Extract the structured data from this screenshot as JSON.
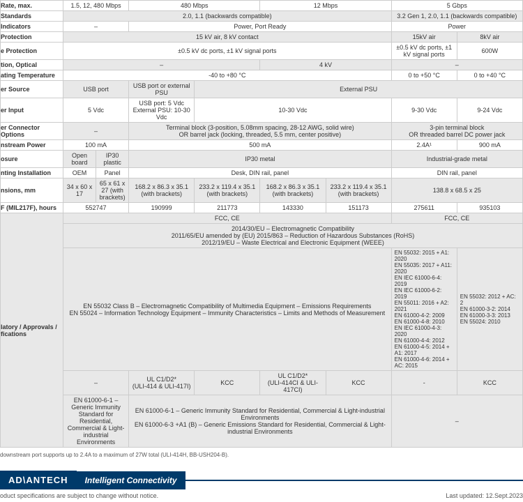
{
  "table": {
    "rows": [
      {
        "label": "Rate, max.",
        "cells": [
          {
            "t": "1.5, 12, 480 Mbps",
            "s": 1
          },
          {
            "t": "480 Mbps",
            "s": 2
          },
          {
            "t": "12 Mbps",
            "s": 2
          },
          {
            "t": "5 Gbps",
            "s": 2
          }
        ]
      },
      {
        "label": "Standards",
        "cells": [
          {
            "t": "2.0, 1.1 (backwards compatible)",
            "s": 5,
            "g": 1
          },
          {
            "t": "3.2 Gen 1, 2.0, 1.1 (backwards compatible)",
            "s": 2,
            "g": 1
          }
        ]
      },
      {
        "label": "Indicators",
        "cells": [
          {
            "t": "–",
            "s": 1
          },
          {
            "t": "Power, Port Ready",
            "s": 4
          },
          {
            "t": "Power",
            "s": 2
          }
        ]
      },
      {
        "label": "Protection",
        "cells": [
          {
            "t": "15 kV air, 8 kV contact",
            "s": 5,
            "g": 1
          },
          {
            "t": "15kV air",
            "s": 1,
            "g": 1
          },
          {
            "t": "8kV air",
            "s": 1,
            "g": 1
          }
        ]
      },
      {
        "label": "e Protection",
        "cells": [
          {
            "t": "±0.5 kV dc ports, ±1 kV signal ports",
            "s": 5
          },
          {
            "t": "±0.5 kV dc ports, ±1 kV signal ports",
            "s": 1
          },
          {
            "t": "600W",
            "s": 1
          }
        ]
      },
      {
        "label": "tion, Optical",
        "cells": [
          {
            "t": "–",
            "s": 3,
            "g": 1
          },
          {
            "t": "4 kV",
            "s": 2,
            "g": 1
          },
          {
            "t": "–",
            "s": 2,
            "g": 1
          }
        ]
      },
      {
        "label": "ating Temperature",
        "cells": [
          {
            "t": "-40 to +80 °C",
            "s": 5
          },
          {
            "t": "0 to +50 °C",
            "s": 1
          },
          {
            "t": "0 to +40 °C",
            "s": 1
          }
        ]
      },
      {
        "label": "er Source",
        "cells": [
          {
            "t": "USB port",
            "s": 1,
            "g": 1
          },
          {
            "t": "USB port or external PSU",
            "s": 1,
            "g": 1
          },
          {
            "t": "External PSU",
            "s": 5,
            "g": 1
          }
        ]
      },
      {
        "label": "er Input",
        "cells": [
          {
            "t": "5 Vdc",
            "s": 1
          },
          {
            "t": "USB port: 5 Vdc\nExternal PSU: 10-30 Vdc",
            "s": 1
          },
          {
            "t": "10-30 Vdc",
            "s": 3
          },
          {
            "t": "9-30 Vdc",
            "s": 1
          },
          {
            "t": "9-24 Vdc",
            "s": 1
          }
        ]
      },
      {
        "label": "er Connector Options",
        "cells": [
          {
            "t": "–",
            "s": 1,
            "g": 1
          },
          {
            "t": "Terminal block (3-position, 5.08mm spacing, 28-12 AWG, solid wire)\nOR barrel jack (locking, threaded, 5.5 mm, center positive)",
            "s": 4,
            "g": 1
          },
          {
            "t": "3-pin terminal block\nOR threaded barrel DC power jack",
            "s": 2,
            "g": 1
          }
        ]
      },
      {
        "label": "nstream Power",
        "cells": [
          {
            "t": "100 mA",
            "s": 1
          },
          {
            "t": "500 mA",
            "s": 4
          },
          {
            "t": "2.4A¹",
            "s": 1
          },
          {
            "t": "900 mA",
            "s": 1
          }
        ]
      },
      {
        "label": "osure",
        "cells": [
          {
            "t": "Open board",
            "s": 0.5,
            "g": 1
          },
          {
            "t": "IP30 plastic",
            "s": 0.5,
            "g": 1
          },
          {
            "t": "IP30 metal",
            "s": 4,
            "g": 1
          },
          {
            "t": "Industrial-grade metal",
            "s": 2,
            "g": 1
          }
        ]
      },
      {
        "label": "nting Installation",
        "cells": [
          {
            "t": "OEM",
            "s": 0.5
          },
          {
            "t": "Panel",
            "s": 0.5
          },
          {
            "t": "Desk, DIN rail, panel",
            "s": 4
          },
          {
            "t": "DIN rail, panel",
            "s": 2
          }
        ]
      },
      {
        "label": "nsions, mm",
        "cells": [
          {
            "t": "34 x 60 x 17",
            "s": 0.5,
            "g": 1
          },
          {
            "t": "65 x 61 x 27 (with brackets)",
            "s": 0.5,
            "g": 1
          },
          {
            "t": "168.2 x 86.3 x 35.1 (with brackets)",
            "s": 1,
            "g": 1
          },
          {
            "t": "233.2 x 119.4 x 35.1 (with brackets)",
            "s": 1,
            "g": 1
          },
          {
            "t": "168.2 x 86.3 x 35.1 (with brackets)",
            "s": 1,
            "g": 1
          },
          {
            "t": "233.2 x 119.4 x 35.1 (with brackets)",
            "s": 1,
            "g": 1
          },
          {
            "t": "138.8 x 68.5 x 25",
            "s": 2,
            "g": 1
          }
        ]
      },
      {
        "label": "F (MIL217F), hours",
        "cells": [
          {
            "t": "552747",
            "s": 1
          },
          {
            "t": "190999",
            "s": 1
          },
          {
            "t": "211773",
            "s": 1
          },
          {
            "t": "143330",
            "s": 1
          },
          {
            "t": "151173",
            "s": 1
          },
          {
            "t": "275611",
            "s": 1
          },
          {
            "t": "935103",
            "s": 1
          }
        ]
      }
    ],
    "reg": {
      "label": "latory / Approvals / fications",
      "r1": [
        {
          "t": "FCC, CE",
          "s": 5
        },
        {
          "t": "FCC, CE",
          "s": 2
        }
      ],
      "r2": "2014/30/EU – Electromagnetic Compatibility\n2011/65/EU amended by (EU) 2015/863 – Reduction of Hazardous Substances (RoHS)\n2012/19/EU – Waste Electrical and Electronic Equipment (WEEE)",
      "r3a": "EN 55032 Class B – Electromagnetic Compatibility of Multimedia Equipment – Emissions Requirements\nEN 55024 – Information Technology Equipment – Immunity Characteristics – Limits and Methods of Measurement",
      "r3b": "EN 55032: 2015 + A1: 2020\nEN 55035: 2017 + A11: 2020\nEN IEC 61000-6-4: 2019\nEN IEC 61000-6-2: 2019\nEN 55011: 2016 + A2: 2021\nEN 61000-4-2: 2009\nEN 61000-4-8: 2010\nEN IEC 61000-4-3: 2020\nEN 61000-4-4: 2012\nEN 61000-4-5: 2014 + A1: 2017\nEN 61000-4-6: 2014 + AC: 2015",
      "r3c": "EN 55032: 2012 + AC: 2\nEN 61000-3-2: 2014\nEN 61000-3-3: 2013\nEN 55024: 2010",
      "r4": [
        {
          "t": "–",
          "s": 1
        },
        {
          "t": "UL C1/D2*\n(ULI-414 & ULI-417I)",
          "s": 1
        },
        {
          "t": "KCC",
          "s": 1
        },
        {
          "t": "UL C1/D2*\n(ULI-414CI & ULI-417CI)",
          "s": 1
        },
        {
          "t": "KCC",
          "s": 1
        },
        {
          "t": "-",
          "s": 1
        },
        {
          "t": "KCC",
          "s": 1
        }
      ],
      "r5a": "EN 61000-6-1 – Generic Immunity Standard for Residential, Commercial & Light-industrial Environments",
      "r5b": "EN 61000-6-1 – Generic Immunity Standard for Residential, Commercial & Light-industrial Environments\nEN 61000-6-3 +A1 (B) – Generic Emissions Standard for Residential, Commercial & Light-industrial Environments",
      "r5c": "–"
    }
  },
  "footnote": "downstream port supports up to 2.4A to a maximum of 27W total (ULI-414H, BB-USH204-B).",
  "footer": {
    "logo": "AD\\ANTECH",
    "tagline": "Intelligent Connectivity",
    "disclaimer": "oduct specifications are subject to change without notice.",
    "updated": "Last updated: 12.Sept.2023"
  }
}
